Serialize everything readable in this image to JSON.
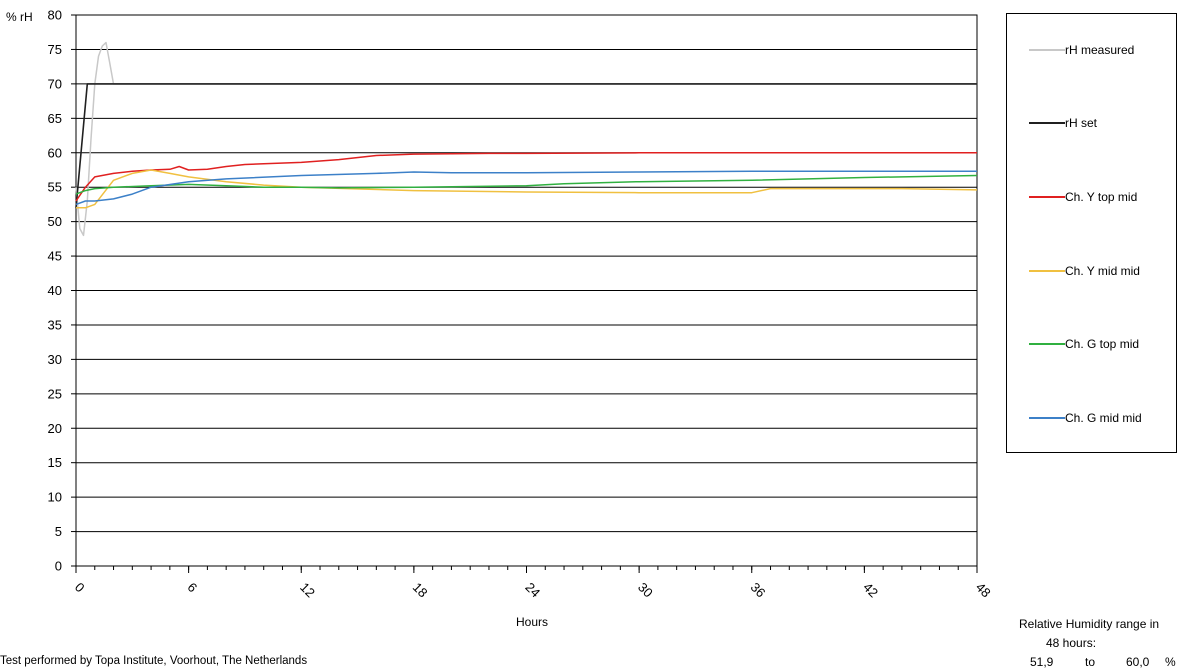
{
  "chart_data": {
    "type": "line",
    "ylabel": "% rH",
    "xlabel": "Hours",
    "xlim": [
      0,
      48
    ],
    "ylim": [
      0,
      80
    ],
    "xticks": [
      0,
      6,
      12,
      18,
      24,
      30,
      36,
      42,
      48
    ],
    "yticks": [
      0,
      5,
      10,
      15,
      20,
      25,
      30,
      35,
      40,
      45,
      50,
      55,
      60,
      65,
      70,
      75,
      80
    ],
    "grid": true,
    "legend_position": "right",
    "series": [
      {
        "name": "rH measured",
        "color": "#c8c8c8",
        "x": [
          0,
          0.2,
          0.4,
          0.6,
          0.8,
          1.0,
          1.2,
          1.4,
          1.6,
          1.8,
          2.0,
          2.5,
          3,
          6,
          12,
          18,
          24,
          30,
          36,
          42,
          48
        ],
        "y": [
          55,
          49,
          48,
          53,
          62,
          70,
          74,
          75.5,
          76,
          73,
          70,
          70,
          70,
          70,
          70,
          70,
          70,
          70,
          70,
          70,
          70
        ]
      },
      {
        "name": "rH set",
        "color": "#202020",
        "x": [
          0,
          0.6,
          0.8,
          48
        ],
        "y": [
          52,
          70,
          70,
          70
        ]
      },
      {
        "name": "Ch. Y top mid",
        "color": "#e02020",
        "x": [
          0,
          0.5,
          1,
          2,
          3,
          4,
          5,
          5.5,
          6,
          7,
          8,
          9,
          10,
          12,
          14,
          16,
          18,
          22,
          24,
          30,
          36,
          38,
          40,
          48
        ],
        "y": [
          53,
          55,
          56.5,
          57,
          57.3,
          57.5,
          57.6,
          58,
          57.5,
          57.6,
          58,
          58.3,
          58.4,
          58.6,
          59,
          59.6,
          59.8,
          59.9,
          59.9,
          60,
          60,
          60,
          60,
          60
        ]
      },
      {
        "name": "Ch. Y mid mid",
        "color": "#f0c040",
        "x": [
          0,
          0.5,
          1,
          2,
          3,
          4,
          5,
          6,
          8,
          10,
          12,
          18,
          24,
          30,
          36,
          37,
          40,
          44,
          48
        ],
        "y": [
          52,
          52,
          52.5,
          56,
          57,
          57.5,
          57,
          56.5,
          55.8,
          55.3,
          55,
          54.5,
          54.3,
          54.2,
          54.2,
          54.8,
          54.8,
          54.8,
          54.6
        ]
      },
      {
        "name": "Ch. G top mid",
        "color": "#30b040",
        "x": [
          0,
          0.5,
          1,
          2,
          4,
          6,
          8,
          10,
          12,
          14,
          18,
          24,
          26,
          30,
          36,
          42,
          48
        ],
        "y": [
          54,
          54.5,
          54.8,
          55,
          55.2,
          55.4,
          55.2,
          55,
          55,
          54.9,
          55,
          55.2,
          55.5,
          55.8,
          56,
          56.4,
          56.7
        ]
      },
      {
        "name": "Ch. G mid mid",
        "color": "#3c80c8",
        "x": [
          0,
          0.5,
          1,
          2,
          3,
          4,
          6,
          8,
          12,
          16,
          18,
          20,
          24,
          30,
          36,
          42,
          48
        ],
        "y": [
          52.5,
          53,
          53,
          53.3,
          54,
          55,
          55.8,
          56.2,
          56.7,
          57,
          57.2,
          57.1,
          57.1,
          57.2,
          57.3,
          57.3,
          57.3
        ]
      }
    ]
  },
  "summary": {
    "line1": "Relative Humidity range in",
    "line2": "48 hours:",
    "min": "51,9",
    "to": "to",
    "max": "60,0",
    "unit": "%"
  },
  "footer": "Test performed by Topa Institute, Voorhout, The Netherlands"
}
